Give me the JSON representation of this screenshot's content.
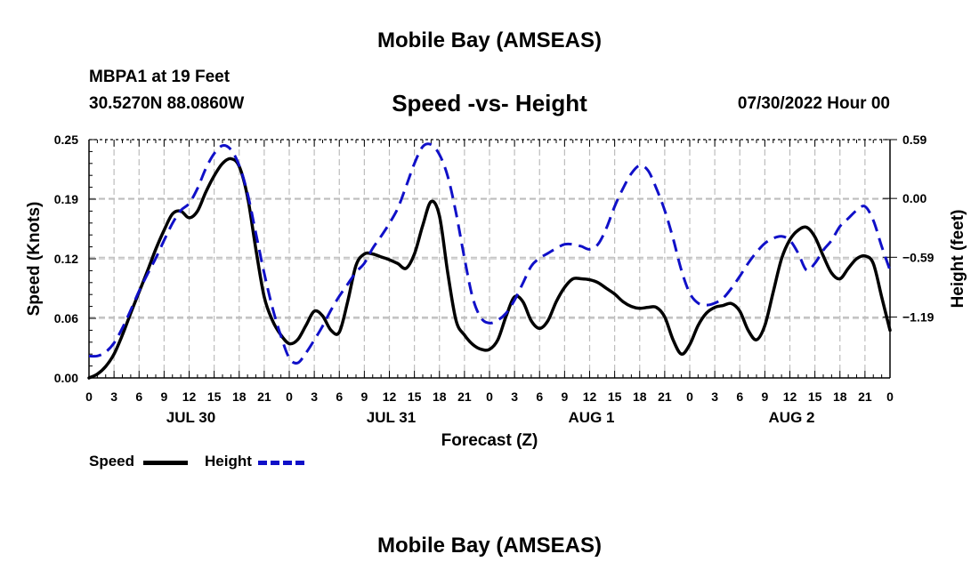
{
  "header": {
    "title": "Mobile Bay (AMSEAS)",
    "station": "MBPA1 at 19 Feet",
    "coords": "30.5270N  88.0860W",
    "subtitle": "Speed -vs- Height",
    "datetime": "07/30/2022 Hour 00"
  },
  "footer": {
    "title": "Mobile Bay (AMSEAS)"
  },
  "chart_data": {
    "type": "line",
    "title": "Speed -vs- Height",
    "xlabel": "Forecast (Z)",
    "ylabel": "Speed (Knots)",
    "y2label": "Height (feet)",
    "xlim": [
      0,
      96
    ],
    "ylim": [
      0,
      0.25
    ],
    "y2lim": [
      -1.8,
      0.59
    ],
    "grid": true,
    "legend_position": "bottom-left",
    "x_ticks": [
      {
        "x": 0,
        "label": "0"
      },
      {
        "x": 3,
        "label": "3"
      },
      {
        "x": 6,
        "label": "6"
      },
      {
        "x": 9,
        "label": "9"
      },
      {
        "x": 12,
        "label": "12"
      },
      {
        "x": 15,
        "label": "15"
      },
      {
        "x": 18,
        "label": "18"
      },
      {
        "x": 21,
        "label": "21"
      },
      {
        "x": 24,
        "label": "0"
      },
      {
        "x": 27,
        "label": "3"
      },
      {
        "x": 30,
        "label": "6"
      },
      {
        "x": 33,
        "label": "9"
      },
      {
        "x": 36,
        "label": "12"
      },
      {
        "x": 39,
        "label": "15"
      },
      {
        "x": 42,
        "label": "18"
      },
      {
        "x": 45,
        "label": "21"
      },
      {
        "x": 48,
        "label": "0"
      },
      {
        "x": 51,
        "label": "3"
      },
      {
        "x": 54,
        "label": "6"
      },
      {
        "x": 57,
        "label": "9"
      },
      {
        "x": 60,
        "label": "12"
      },
      {
        "x": 63,
        "label": "15"
      },
      {
        "x": 66,
        "label": "18"
      },
      {
        "x": 69,
        "label": "21"
      },
      {
        "x": 72,
        "label": "0"
      },
      {
        "x": 75,
        "label": "3"
      },
      {
        "x": 78,
        "label": "6"
      },
      {
        "x": 81,
        "label": "9"
      },
      {
        "x": 84,
        "label": "12"
      },
      {
        "x": 87,
        "label": "15"
      },
      {
        "x": 90,
        "label": "18"
      },
      {
        "x": 93,
        "label": "21"
      },
      {
        "x": 96,
        "label": "0"
      }
    ],
    "day_labels": [
      {
        "x": 12,
        "label": "JUL 30"
      },
      {
        "x": 36,
        "label": "JUL 31"
      },
      {
        "x": 60,
        "label": "AUG 1"
      },
      {
        "x": 84,
        "label": "AUG 2"
      }
    ],
    "y_ticks": [
      {
        "value": 0.0,
        "label": "0.00"
      },
      {
        "value": 0.0625,
        "label": "0.06"
      },
      {
        "value": 0.125,
        "label": "0.12"
      },
      {
        "value": 0.1875,
        "label": "0.19"
      },
      {
        "value": 0.25,
        "label": "0.25"
      }
    ],
    "y2_ticks": [
      {
        "value": 0.59,
        "label": "0.59"
      },
      {
        "value": 0.0,
        "label": "0.00"
      },
      {
        "value": -0.59,
        "label": "−0.59"
      },
      {
        "value": -1.19,
        "label": "−1.19"
      }
    ],
    "series": [
      {
        "name": "Speed",
        "color": "#000000",
        "axis": "left",
        "x": [
          0,
          1,
          2,
          3,
          4,
          5,
          6,
          7,
          8,
          9,
          10,
          11,
          12,
          13,
          14,
          15,
          16,
          17,
          18,
          19,
          20,
          21,
          22,
          23,
          24,
          25,
          26,
          27,
          28,
          29,
          30,
          31,
          32,
          33,
          34,
          35,
          36,
          37,
          38,
          39,
          40,
          41,
          42,
          43,
          44,
          45,
          46,
          47,
          48,
          49,
          50,
          51,
          52,
          53,
          54,
          55,
          56,
          57,
          58,
          59,
          60,
          61,
          62,
          63,
          64,
          65,
          66,
          67,
          68,
          69,
          70,
          71,
          72,
          73,
          74,
          75,
          76,
          77,
          78,
          79,
          80,
          81,
          82,
          83,
          84,
          85,
          86,
          87,
          88,
          89,
          90,
          91,
          92,
          93,
          94,
          95,
          96
        ],
        "values": [
          0.0,
          0.004,
          0.012,
          0.025,
          0.045,
          0.068,
          0.09,
          0.112,
          0.135,
          0.155,
          0.172,
          0.175,
          0.168,
          0.175,
          0.195,
          0.212,
          0.225,
          0.23,
          0.222,
          0.19,
          0.135,
          0.085,
          0.06,
          0.045,
          0.036,
          0.04,
          0.055,
          0.07,
          0.065,
          0.05,
          0.048,
          0.08,
          0.118,
          0.13,
          0.13,
          0.127,
          0.124,
          0.12,
          0.115,
          0.13,
          0.16,
          0.185,
          0.17,
          0.11,
          0.06,
          0.045,
          0.035,
          0.03,
          0.03,
          0.04,
          0.065,
          0.085,
          0.08,
          0.06,
          0.052,
          0.06,
          0.08,
          0.095,
          0.104,
          0.104,
          0.103,
          0.1,
          0.094,
          0.088,
          0.08,
          0.075,
          0.073,
          0.074,
          0.074,
          0.064,
          0.04,
          0.025,
          0.035,
          0.055,
          0.068,
          0.074,
          0.076,
          0.078,
          0.07,
          0.05,
          0.04,
          0.055,
          0.09,
          0.125,
          0.145,
          0.155,
          0.158,
          0.148,
          0.128,
          0.11,
          0.104,
          0.115,
          0.125,
          0.128,
          0.12,
          0.085,
          0.05
        ]
      },
      {
        "name": "Height",
        "color": "#1010c8",
        "axis": "right",
        "x": [
          0,
          1,
          2,
          3,
          4,
          5,
          6,
          7,
          8,
          9,
          10,
          11,
          12,
          13,
          14,
          15,
          16,
          17,
          18,
          19,
          20,
          21,
          22,
          23,
          24,
          25,
          26,
          27,
          28,
          29,
          30,
          31,
          32,
          33,
          34,
          35,
          36,
          37,
          38,
          39,
          40,
          41,
          42,
          43,
          44,
          45,
          46,
          47,
          48,
          49,
          50,
          51,
          52,
          53,
          54,
          55,
          56,
          57,
          58,
          59,
          60,
          61,
          62,
          63,
          64,
          65,
          66,
          67,
          68,
          69,
          70,
          71,
          72,
          73,
          74,
          75,
          76,
          77,
          78,
          79,
          80,
          81,
          82,
          83,
          84,
          85,
          86,
          87,
          88,
          89,
          90,
          91,
          92,
          93,
          94,
          95,
          96
        ],
        "values": [
          -1.58,
          -1.58,
          -1.54,
          -1.45,
          -1.3,
          -1.12,
          -0.93,
          -0.76,
          -0.6,
          -0.42,
          -0.25,
          -0.12,
          -0.05,
          0.1,
          0.3,
          0.45,
          0.53,
          0.49,
          0.33,
          0.05,
          -0.35,
          -0.75,
          -1.1,
          -1.38,
          -1.6,
          -1.65,
          -1.55,
          -1.42,
          -1.28,
          -1.12,
          -0.98,
          -0.86,
          -0.74,
          -0.65,
          -0.5,
          -0.38,
          -0.25,
          -0.1,
          0.12,
          0.35,
          0.52,
          0.54,
          0.44,
          0.22,
          -0.15,
          -0.6,
          -1.0,
          -1.2,
          -1.25,
          -1.22,
          -1.15,
          -1.02,
          -0.85,
          -0.68,
          -0.6,
          -0.55,
          -0.5,
          -0.46,
          -0.46,
          -0.48,
          -0.51,
          -0.46,
          -0.3,
          -0.08,
          0.1,
          0.25,
          0.33,
          0.28,
          0.1,
          -0.12,
          -0.4,
          -0.72,
          -0.95,
          -1.05,
          -1.07,
          -1.05,
          -1.0,
          -0.9,
          -0.78,
          -0.65,
          -0.54,
          -0.45,
          -0.4,
          -0.38,
          -0.42,
          -0.55,
          -0.72,
          -0.65,
          -0.52,
          -0.42,
          -0.28,
          -0.2,
          -0.12,
          -0.08,
          -0.22,
          -0.48,
          -0.72
        ]
      }
    ]
  },
  "legend": {
    "speed_label": "Speed",
    "height_label": "Height"
  }
}
